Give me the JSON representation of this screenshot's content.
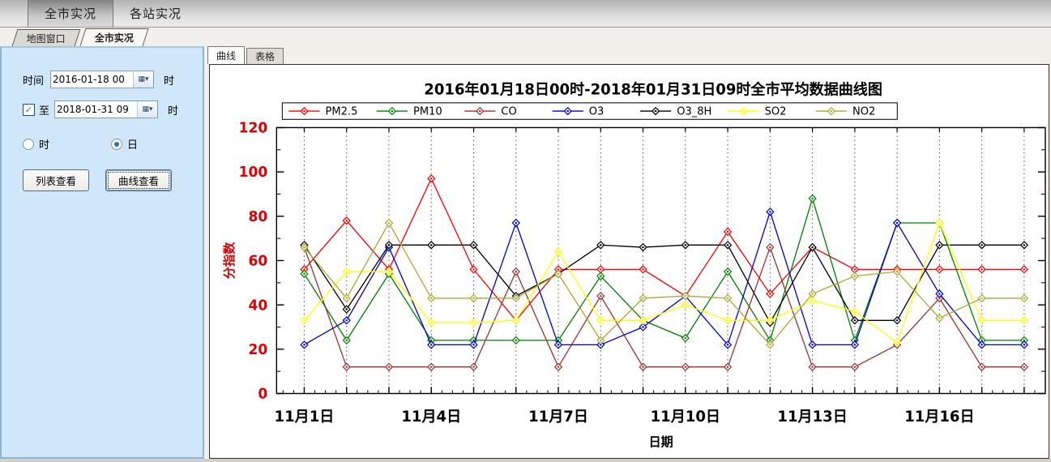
{
  "top_tabs": [
    {
      "label": "全市实况",
      "active": true
    },
    {
      "label": "各站实况",
      "active": false
    }
  ],
  "window_tabs": [
    {
      "label": "地图窗口",
      "active": false
    },
    {
      "label": "全市实况",
      "active": true
    }
  ],
  "left_panel": {
    "time_label": "时间",
    "start_value": "2016-01-18 00",
    "hour_suffix": "时",
    "to_label": "至",
    "to_checked": true,
    "check_glyph": "✓",
    "calendar_icon": "▦▾",
    "end_value": "2018-01-31 09",
    "radio_hour_label": "时",
    "radio_day_label": "日",
    "selected_radio": "日",
    "list_button": "列表查看",
    "curve_button": "曲线查看"
  },
  "view_tabs": [
    {
      "label": "曲线",
      "active": true
    },
    {
      "label": "表格",
      "active": false
    }
  ],
  "chart_data": {
    "type": "line",
    "title": "2016年01月18日00时-2018年01月31日09时全市平均数据曲线图",
    "xlabel": "日期",
    "ylabel": "分指数",
    "ylim": [
      0,
      120
    ],
    "ytick_step": 20,
    "yticks": [
      0,
      20,
      40,
      60,
      80,
      100,
      120
    ],
    "ytick_color": "#dd0000",
    "grid": "vertical-dotted",
    "legend_position": "top",
    "x": [
      1,
      2,
      3,
      4,
      5,
      6,
      7,
      8,
      9,
      10,
      11,
      12,
      13,
      14,
      15,
      16,
      17,
      18
    ],
    "x_tick_positions": [
      1,
      4,
      7,
      10,
      13,
      16
    ],
    "x_tick_labels": [
      "11月1日",
      "11月4日",
      "11月7日",
      "11月10日",
      "11月13日",
      "11月16日"
    ],
    "series": [
      {
        "name": "PM2.5",
        "color": "#ff0000",
        "values": [
          56,
          78,
          56,
          97,
          56,
          33,
          56,
          56,
          56,
          44,
          73,
          45,
          66,
          56,
          56,
          56,
          56,
          56
        ]
      },
      {
        "name": "PM10",
        "color": "#008000",
        "values": [
          54,
          24,
          54,
          24,
          24,
          24,
          24,
          53,
          33,
          25,
          55,
          24,
          88,
          24,
          77,
          77,
          24,
          24
        ]
      },
      {
        "name": "CO",
        "color": "#993333",
        "values": [
          66,
          12,
          12,
          12,
          12,
          55,
          12,
          44,
          12,
          12,
          12,
          66,
          12,
          12,
          22,
          43,
          12,
          12
        ]
      },
      {
        "name": "O3",
        "color": "#0000cc",
        "values": [
          22,
          33,
          66,
          22,
          22,
          77,
          22,
          22,
          30,
          44,
          22,
          82,
          22,
          22,
          77,
          45,
          22,
          22
        ]
      },
      {
        "name": "O3_8H",
        "color": "#000000",
        "values": [
          67,
          38,
          67,
          67,
          67,
          44,
          54,
          67,
          66,
          67,
          67,
          32,
          66,
          33,
          33,
          67,
          67,
          67
        ]
      },
      {
        "name": "SO2",
        "color": "#ffff00",
        "values": [
          33,
          55,
          55,
          32,
          32,
          33,
          64,
          33,
          33,
          40,
          33,
          33,
          42,
          37,
          23,
          77,
          33,
          33
        ]
      },
      {
        "name": "NO2",
        "color": "#aaaa33",
        "values": [
          66,
          43,
          77,
          43,
          43,
          43,
          54,
          24,
          43,
          44,
          43,
          22,
          45,
          53,
          55,
          34,
          43,
          43
        ]
      }
    ]
  }
}
